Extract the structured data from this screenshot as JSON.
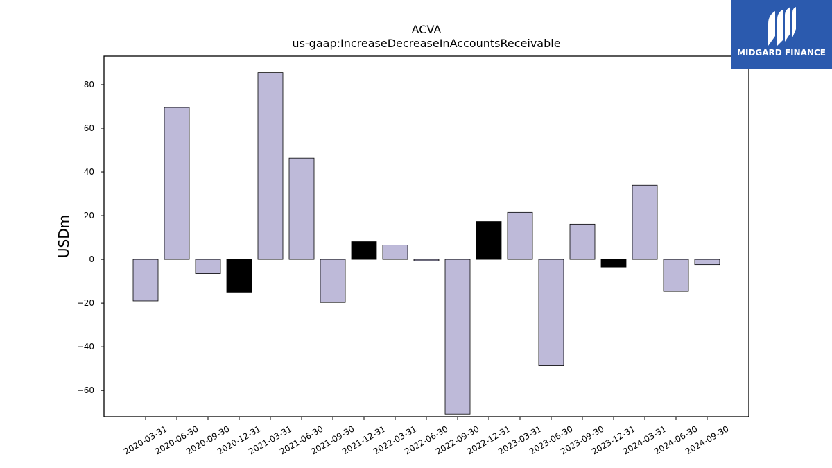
{
  "logo": {
    "text": "MIDGARD FINANCE"
  },
  "chart_data": {
    "type": "bar",
    "title": "ACVA",
    "subtitle": "us-gaap:IncreaseDecreaseInAccountsReceivable",
    "xlabel": "",
    "ylabel": "USDm",
    "ylim": [
      -72,
      93
    ],
    "yticks": [
      -60,
      -40,
      -20,
      0,
      20,
      40,
      60,
      80
    ],
    "grid": false,
    "categories": [
      "2020-03-31",
      "2020-06-30",
      "2020-09-30",
      "2020-12-31",
      "2021-03-31",
      "2021-06-30",
      "2021-09-30",
      "2021-12-31",
      "2022-03-31",
      "2022-06-30",
      "2022-09-30",
      "2022-12-31",
      "2023-03-31",
      "2023-06-30",
      "2023-09-30",
      "2023-12-31",
      "2024-03-31",
      "2024-06-30",
      "2024-09-30"
    ],
    "values": [
      -19.0,
      69.5,
      -6.5,
      -15.0,
      85.5,
      46.3,
      -19.7,
      8.1,
      6.5,
      -0.6,
      -70.8,
      17.3,
      21.5,
      -48.7,
      16.1,
      -3.5,
      33.9,
      -14.6,
      -2.4
    ],
    "colors": [
      "#bebad9",
      "#bebad9",
      "#bebad9",
      "#000000",
      "#bebad9",
      "#bebad9",
      "#bebad9",
      "#000000",
      "#bebad9",
      "#bebad9",
      "#bebad9",
      "#000000",
      "#bebad9",
      "#bebad9",
      "#bebad9",
      "#000000",
      "#bebad9",
      "#bebad9",
      "#bebad9"
    ]
  }
}
